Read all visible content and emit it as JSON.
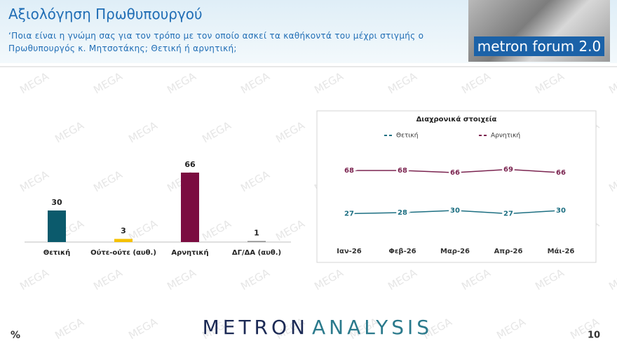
{
  "header": {
    "title": "Αξιολόγηση Πρωθυπουργού",
    "subtitle": "‘Ποια είναι η γνώμη σας για τον τρόπο με τον οποίο ασκεί τα καθήκοντά του μέχρι στιγμής ο Πρωθυπουργός κ. Μητσοτάκης; Θετική ή αρνητική;",
    "logo": "metron forum 2.0"
  },
  "watermark": "MEGA",
  "chart_data": [
    {
      "type": "bar",
      "categories": [
        "Θετική",
        "Ούτε-ούτε (αυθ.)",
        "Αρνητική",
        "ΔΓ/ΔΑ (αυθ.)"
      ],
      "values": [
        30,
        3,
        66,
        1
      ],
      "colors": [
        "#0b5a6c",
        "#f6c100",
        "#7b0c40",
        "#8c8c8c"
      ]
    },
    {
      "type": "line",
      "title": "Διαχρονικά στοιχεία",
      "categories": [
        "Ιαν-26",
        "Φεβ-26",
        "Μαρ-26",
        "Απρ-26",
        "Μάι-26"
      ],
      "series": [
        {
          "name": "Θετική",
          "color": "#1d6f82",
          "values": [
            27,
            28,
            30,
            27,
            30
          ]
        },
        {
          "name": "Αρνητική",
          "color": "#7b2450",
          "values": [
            68,
            68,
            66,
            69,
            66
          ]
        }
      ]
    }
  ],
  "footer": {
    "unit": "%",
    "brand_left": "METRON",
    "brand_right": "ANALYSIS",
    "page": "10"
  }
}
